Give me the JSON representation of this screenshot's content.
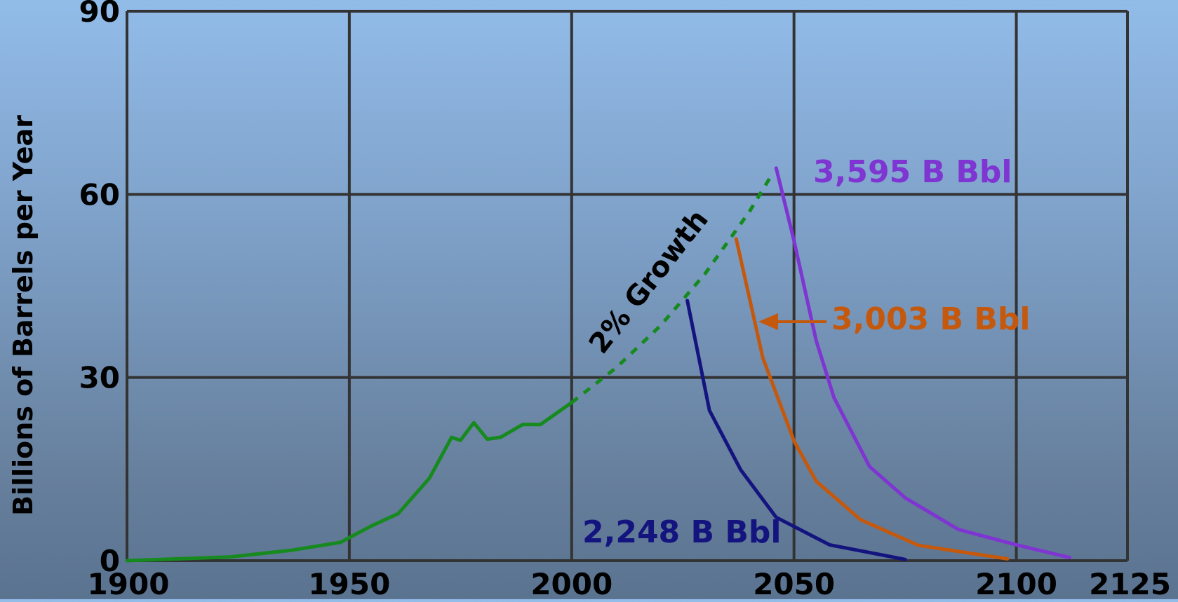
{
  "chart_data": {
    "type": "line",
    "title": "",
    "xlabel": "",
    "ylabel": "Billions of Barrels per Year",
    "xlim": [
      1900,
      2125
    ],
    "ylim": [
      0,
      90
    ],
    "x_ticks": [
      "1900",
      "1950",
      "2000",
      "2050",
      "2100",
      "2125"
    ],
    "y_ticks": [
      "0",
      "30",
      "60",
      "90"
    ],
    "grid": true,
    "series": [
      {
        "key": "historical",
        "color": "#168a1e",
        "style": "solid",
        "points": [
          [
            1900,
            0
          ],
          [
            1923,
            0.6
          ],
          [
            1937,
            1.7
          ],
          [
            1948,
            3
          ],
          [
            1955,
            5.7
          ],
          [
            1961,
            7.7
          ],
          [
            1968,
            13.5
          ],
          [
            1973,
            20.2
          ],
          [
            1975,
            19.7
          ],
          [
            1978,
            22.6
          ],
          [
            1981,
            19.9
          ],
          [
            1984,
            20.2
          ],
          [
            1989,
            22.3
          ],
          [
            1993,
            22.3
          ],
          [
            2000,
            25.9
          ]
        ]
      },
      {
        "key": "growth-projection",
        "color": "#168a1e",
        "style": "dashed",
        "points": [
          [
            2000,
            25.9
          ],
          [
            2010,
            31.6
          ],
          [
            2020,
            38.5
          ],
          [
            2030,
            47
          ],
          [
            2040,
            57.2
          ],
          [
            2045,
            63.2
          ]
        ]
      },
      {
        "key": "scenario-2248",
        "name": "2,248 B Bbl",
        "color": "#14147f",
        "style": "solid",
        "points": [
          [
            2026,
            42.6
          ],
          [
            2031,
            24.6
          ],
          [
            2038,
            14.9
          ],
          [
            2046,
            7.1
          ],
          [
            2058,
            2.6
          ],
          [
            2075,
            0.2
          ]
        ]
      },
      {
        "key": "scenario-3003",
        "name": "3,003 B Bbl",
        "color": "#c4590e",
        "style": "solid",
        "points": [
          [
            2037,
            52.7
          ],
          [
            2043,
            33.2
          ],
          [
            2050,
            19.6
          ],
          [
            2055,
            13
          ],
          [
            2065,
            6.7
          ],
          [
            2078,
            2.5
          ],
          [
            2098,
            0.3
          ]
        ]
      },
      {
        "key": "scenario-3595",
        "name": "3,595 B Bbl",
        "color": "#7e35d1",
        "style": "solid",
        "points": [
          [
            2046,
            64.3
          ],
          [
            2050,
            52.4
          ],
          [
            2055,
            36
          ],
          [
            2059,
            26.7
          ],
          [
            2067,
            15.4
          ],
          [
            2075,
            10.3
          ],
          [
            2087,
            5.1
          ],
          [
            2100,
            2.6
          ],
          [
            2112,
            0.5
          ]
        ]
      }
    ],
    "annotations": [
      {
        "key": "growth-label",
        "text": "2% Growth",
        "color": "#000000"
      },
      {
        "key": "label-2248",
        "text": "2,248 B Bbl",
        "color": "#14147f"
      },
      {
        "key": "label-3003",
        "text": "3,003 B Bbl",
        "color": "#c4590e"
      },
      {
        "key": "label-3595",
        "text": "3,595 B Bbl",
        "color": "#7e35d1"
      }
    ]
  }
}
